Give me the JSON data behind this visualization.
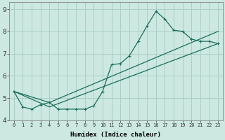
{
  "xlabel": "Humidex (Indice chaleur)",
  "bg_color": "#cce8e0",
  "grid_color": "#aacfc7",
  "line_color": "#1a6e5e",
  "xlim": [
    -0.5,
    23.5
  ],
  "ylim": [
    4.0,
    9.3
  ],
  "yticks": [
    4,
    5,
    6,
    7,
    8,
    9
  ],
  "xticks": [
    0,
    1,
    2,
    3,
    4,
    5,
    6,
    7,
    8,
    9,
    10,
    11,
    12,
    13,
    14,
    15,
    16,
    17,
    18,
    19,
    20,
    21,
    22,
    23
  ],
  "series1_x": [
    0,
    1,
    2,
    3,
    4,
    5,
    6,
    7,
    8,
    9,
    10,
    11,
    12,
    13,
    14,
    15,
    16,
    17,
    18,
    19,
    20,
    21,
    22,
    23
  ],
  "series1_y": [
    5.3,
    4.6,
    4.5,
    4.7,
    4.8,
    4.5,
    4.5,
    4.5,
    4.5,
    4.65,
    5.3,
    6.5,
    6.55,
    6.9,
    7.55,
    8.25,
    8.9,
    8.55,
    8.05,
    8.0,
    7.65,
    7.55,
    7.55,
    7.45
  ],
  "trend1_x": [
    0,
    4,
    23
  ],
  "trend1_y": [
    5.3,
    4.8,
    8.0
  ],
  "trend2_x": [
    0,
    4,
    23
  ],
  "trend2_y": [
    5.3,
    4.6,
    7.45
  ]
}
